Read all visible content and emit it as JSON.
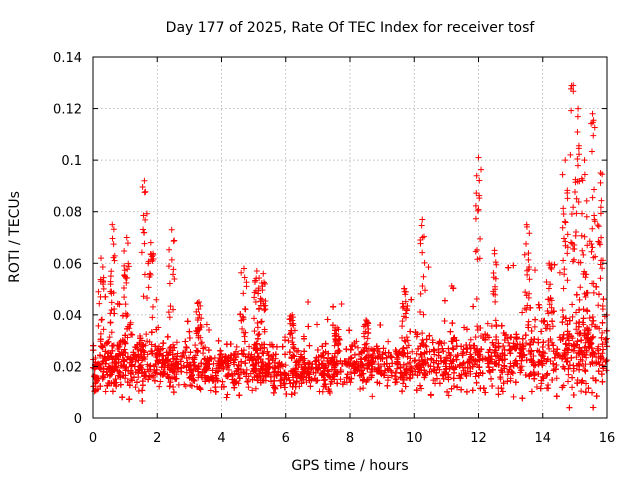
{
  "chart_data": {
    "type": "scatter",
    "title": "Day 177 of 2025, Rate Of TEC Index for receiver tosf",
    "xlabel": "GPS time / hours",
    "ylabel": "ROTI / TECUs",
    "xlim": [
      0,
      16
    ],
    "ylim": [
      0,
      0.14
    ],
    "xticks": [
      0,
      2,
      4,
      6,
      8,
      10,
      12,
      14,
      16
    ],
    "xtick_labels": [
      "0",
      "2",
      "4",
      "6",
      "8",
      "10",
      "12",
      "14",
      "16"
    ],
    "yticks": [
      0,
      0.02,
      0.04,
      0.06,
      0.08,
      0.1,
      0.12,
      0.14
    ],
    "ytick_labels": [
      "0",
      "0.02",
      "0.04",
      "0.06",
      "0.08",
      "0.1",
      "0.12",
      "0.14"
    ],
    "grid": true,
    "marker": "+",
    "color": "#ff0000",
    "baseline_profile": {
      "x": [
        0,
        0.5,
        1,
        2,
        3,
        4,
        5,
        6,
        7,
        8,
        9,
        10,
        11,
        12,
        13,
        14,
        15,
        16
      ],
      "typical_roti": [
        0.02,
        0.021,
        0.022,
        0.021,
        0.02,
        0.019,
        0.02,
        0.019,
        0.019,
        0.02,
        0.02,
        0.021,
        0.022,
        0.023,
        0.024,
        0.025,
        0.027,
        0.026
      ],
      "spread": [
        0.007,
        0.008,
        0.009,
        0.008,
        0.007,
        0.007,
        0.008,
        0.007,
        0.006,
        0.007,
        0.007,
        0.008,
        0.009,
        0.009,
        0.01,
        0.012,
        0.014,
        0.013
      ]
    },
    "peaks": [
      {
        "x": 0.25,
        "y": 0.062
      },
      {
        "x": 0.6,
        "y": 0.075
      },
      {
        "x": 1.05,
        "y": 0.07
      },
      {
        "x": 1.6,
        "y": 0.092
      },
      {
        "x": 1.8,
        "y": 0.068
      },
      {
        "x": 2.45,
        "y": 0.073
      },
      {
        "x": 3.3,
        "y": 0.045
      },
      {
        "x": 4.7,
        "y": 0.058
      },
      {
        "x": 5.1,
        "y": 0.057
      },
      {
        "x": 5.3,
        "y": 0.056
      },
      {
        "x": 6.2,
        "y": 0.04
      },
      {
        "x": 7.6,
        "y": 0.035
      },
      {
        "x": 8.5,
        "y": 0.038
      },
      {
        "x": 9.7,
        "y": 0.049
      },
      {
        "x": 10.25,
        "y": 0.077
      },
      {
        "x": 12.0,
        "y": 0.101
      },
      {
        "x": 12.5,
        "y": 0.065
      },
      {
        "x": 13.5,
        "y": 0.075
      },
      {
        "x": 14.2,
        "y": 0.06
      },
      {
        "x": 14.7,
        "y": 0.1
      },
      {
        "x": 14.95,
        "y": 0.129
      },
      {
        "x": 15.1,
        "y": 0.12
      },
      {
        "x": 15.3,
        "y": 0.1
      },
      {
        "x": 15.55,
        "y": 0.118
      },
      {
        "x": 15.8,
        "y": 0.095
      }
    ],
    "approx_points": 5000
  }
}
